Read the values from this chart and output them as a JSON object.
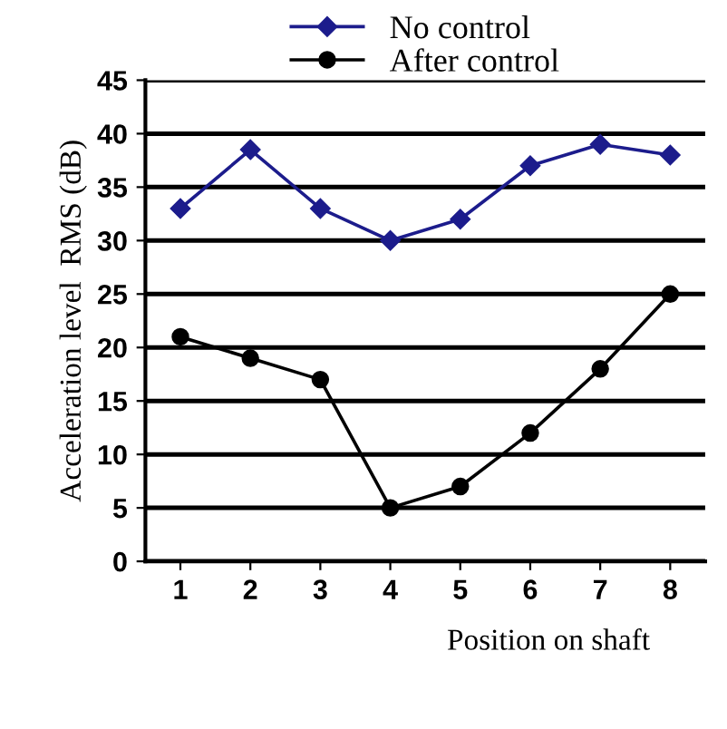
{
  "chart_data": {
    "type": "line",
    "xlabel": "Position on shaft",
    "ylabel": "Acceleration level  RMS (dB)",
    "categories": [
      "1",
      "2",
      "3",
      "4",
      "5",
      "6",
      "7",
      "8"
    ],
    "series": [
      {
        "name": "No control",
        "color": "#1c1c8c",
        "values": [
          33,
          38.5,
          33,
          30,
          32,
          37,
          39,
          38
        ],
        "marker": "diamond"
      },
      {
        "name": "After control",
        "color": "#000000",
        "values": [
          21,
          19,
          17,
          5,
          7,
          12,
          18,
          25
        ],
        "marker": "circle"
      }
    ],
    "ylim": [
      0,
      45
    ],
    "yticks": [
      0,
      5,
      10,
      15,
      20,
      25,
      30,
      35,
      40,
      45
    ],
    "grid": "y",
    "legend": "top"
  }
}
